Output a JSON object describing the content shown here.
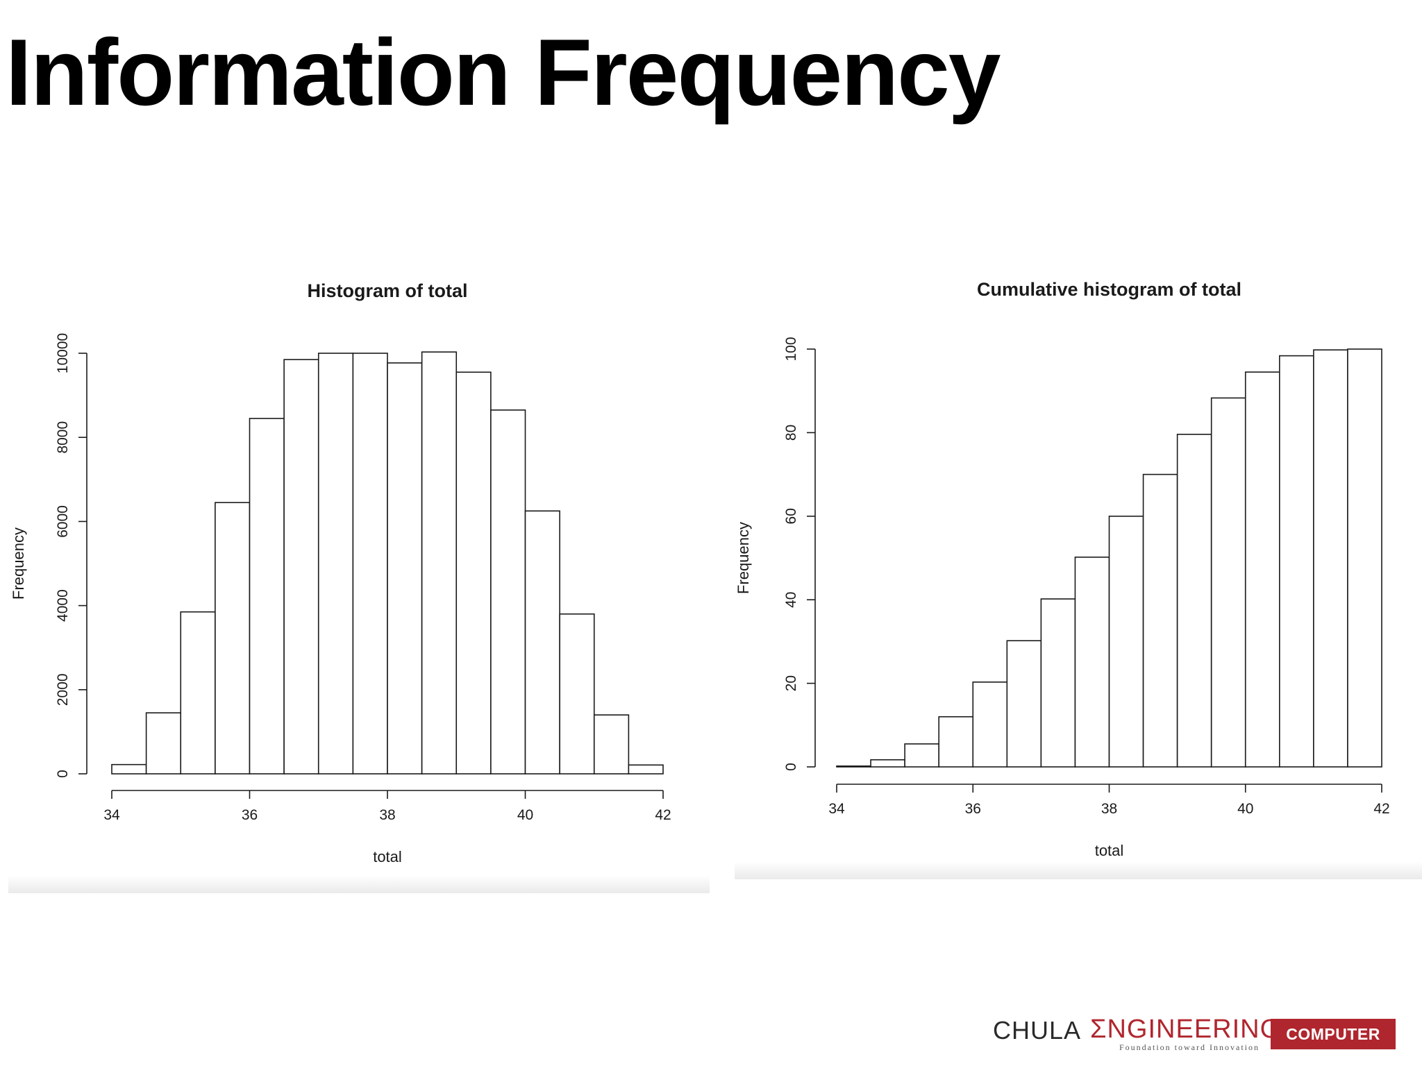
{
  "slide": {
    "title": "Information Frequency"
  },
  "chart_data": [
    {
      "type": "bar",
      "title": "Histogram of total",
      "xlabel": "total",
      "ylabel": "Frequency",
      "x_bin_edges": [
        34,
        34.5,
        35,
        35.5,
        36,
        36.5,
        37,
        37.5,
        38,
        38.5,
        39,
        39.5,
        40,
        40.5,
        41,
        41.5,
        42
      ],
      "values": [
        220,
        1450,
        3850,
        6450,
        8450,
        9850,
        10000,
        10000,
        9770,
        10030,
        9550,
        8650,
        6250,
        3800,
        1400,
        210
      ],
      "xlim": [
        34,
        42
      ],
      "ylim": [
        0,
        10000
      ],
      "xticks": [
        "34",
        "36",
        "38",
        "40",
        "42"
      ],
      "yticks": [
        "0",
        "2000",
        "4000",
        "6000",
        "8000",
        "10000"
      ],
      "grid": false,
      "legend": "none"
    },
    {
      "type": "bar",
      "title": "Cumulative histogram of total",
      "xlabel": "total",
      "ylabel": "Frequency",
      "x_bin_edges": [
        34,
        34.5,
        35,
        35.5,
        36,
        36.5,
        37,
        37.5,
        38,
        38.5,
        39,
        39.5,
        40,
        40.5,
        41,
        41.5,
        42
      ],
      "values": [
        0.2,
        1.7,
        5.5,
        12,
        20.3,
        30.2,
        40.2,
        50.2,
        60,
        70,
        79.6,
        88.3,
        94.5,
        98.4,
        99.8,
        100
      ],
      "xlim": [
        34,
        42
      ],
      "ylim": [
        0,
        100
      ],
      "xticks": [
        "34",
        "36",
        "38",
        "40",
        "42"
      ],
      "yticks": [
        "0",
        "20",
        "40",
        "60",
        "80",
        "100"
      ],
      "grid": false,
      "legend": "none"
    }
  ],
  "footer": {
    "brand_left": "CHULA",
    "brand_right": "ΣNGINEERING",
    "tagline": "Foundation toward Innovation",
    "department": "COMPUTER",
    "brand_color": "#b0262e"
  }
}
